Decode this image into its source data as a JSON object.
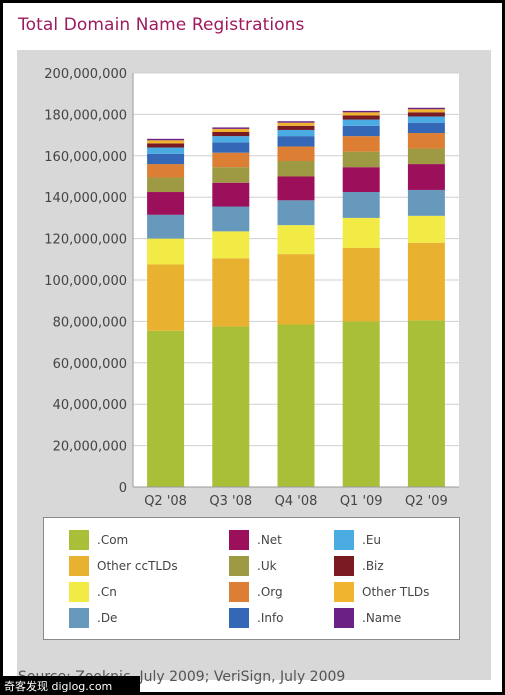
{
  "title": "Total Domain Name Registrations",
  "source": "Source: Zooknic, July 2009; VeriSign, July 2009",
  "watermark": "奇客发现 diglog.com",
  "chart_data": {
    "type": "bar",
    "stacked": true,
    "title": "Total Domain Name Registrations",
    "xlabel": "",
    "ylabel": "",
    "categories": [
      "Q2 '08",
      "Q3 '08",
      "Q4 '08",
      "Q1 '09",
      "Q2 '09"
    ],
    "ylim": [
      0,
      200000000
    ],
    "yticks": [
      0,
      20000000,
      40000000,
      60000000,
      80000000,
      100000000,
      120000000,
      140000000,
      160000000,
      180000000,
      200000000
    ],
    "ytick_labels": [
      "0",
      "20,000,000",
      "40,000,000",
      "60,000,000",
      "80,000,000",
      "100,000,000",
      "120,000,000",
      "140,000,000",
      "160,000,000",
      "180,000,000",
      "200,000,000"
    ],
    "grid": true,
    "legend_position": "bottom",
    "series": [
      {
        "name": ".Com",
        "color": "#a8bf37",
        "values": [
          75500000,
          77500000,
          78500000,
          80000000,
          80500000
        ]
      },
      {
        "name": "Other ccTLDs",
        "color": "#e8b230",
        "values": [
          32000000,
          33000000,
          34000000,
          35500000,
          37500000
        ]
      },
      {
        "name": ".Cn",
        "color": "#f2ea45",
        "values": [
          12500000,
          13000000,
          14000000,
          14500000,
          13000000
        ]
      },
      {
        "name": ".De",
        "color": "#6699bb",
        "values": [
          11500000,
          12000000,
          12000000,
          12500000,
          12500000
        ]
      },
      {
        "name": ".Net",
        "color": "#9c0f5a",
        "values": [
          11000000,
          11500000,
          11500000,
          12000000,
          12500000
        ]
      },
      {
        "name": ".Uk",
        "color": "#9e9a43",
        "values": [
          7000000,
          7500000,
          7500000,
          7500000,
          7500000
        ]
      },
      {
        "name": ".Org",
        "color": "#dc7f34",
        "values": [
          6500000,
          7000000,
          7000000,
          7500000,
          7500000
        ]
      },
      {
        "name": ".Info",
        "color": "#3468b6",
        "values": [
          5000000,
          5000000,
          5000000,
          5000000,
          5000000
        ]
      },
      {
        "name": ".Eu",
        "color": "#4aace2",
        "values": [
          3000000,
          3000000,
          3000000,
          3000000,
          3000000
        ]
      },
      {
        "name": ".Biz",
        "color": "#7a1a21",
        "values": [
          2000000,
          2000000,
          2000000,
          2000000,
          2000000
        ]
      },
      {
        "name": "Other TLDs",
        "color": "#f0b42e",
        "values": [
          1500000,
          1500000,
          1500000,
          1500000,
          1500000
        ]
      },
      {
        "name": ".Name",
        "color": "#6b2083",
        "values": [
          700000,
          700000,
          700000,
          700000,
          700000
        ]
      }
    ]
  }
}
